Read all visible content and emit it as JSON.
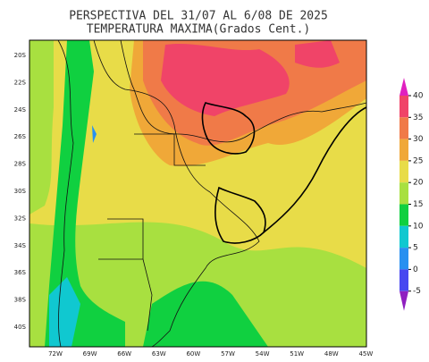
{
  "header": {
    "title": "PERSPECTIVA DEL 31/07 AL 6/08 DE 2025",
    "subtitle": "TEMPERATURA MAXIMA(Grados Cent.)"
  },
  "map": {
    "lat_labels": [
      "20S",
      "22S",
      "24S",
      "26S",
      "28S",
      "30S",
      "32S",
      "34S",
      "36S",
      "38S",
      "40S"
    ],
    "lon_labels": [
      "72W",
      "69W",
      "66W",
      "63W",
      "60W",
      "57W",
      "54W",
      "51W",
      "48W",
      "45W"
    ]
  },
  "colorbar": {
    "ticks": [
      40,
      35,
      30,
      25,
      20,
      15,
      10,
      5,
      0,
      -5
    ],
    "colors": [
      "#e020c0",
      "#f04468",
      "#f07a48",
      "#f0a838",
      "#e8dc48",
      "#a8e040",
      "#10d040",
      "#10c8d0",
      "#2890f0",
      "#4848f0",
      "#9020c0"
    ]
  }
}
